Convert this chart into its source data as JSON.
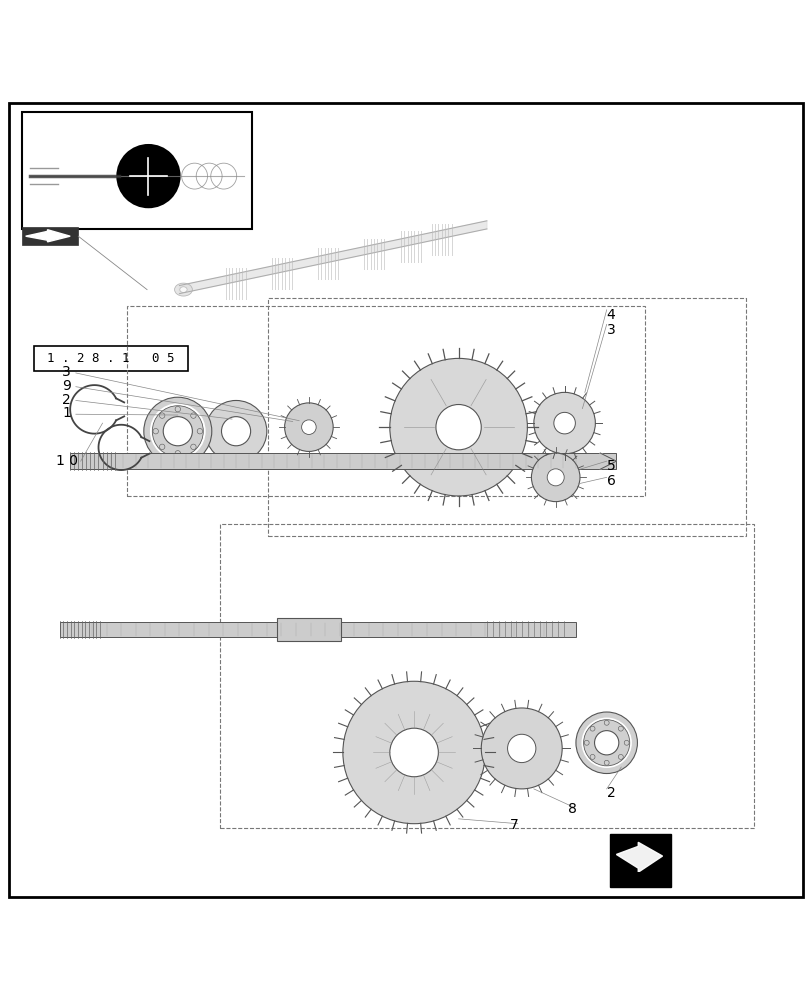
{
  "background_color": "#ffffff",
  "border_color": "#000000",
  "line_color": "#000000",
  "light_gray": "#cccccc",
  "medium_gray": "#888888",
  "dark_gray": "#555555",
  "figsize": [
    8.12,
    10.0
  ],
  "dpi": 100
}
